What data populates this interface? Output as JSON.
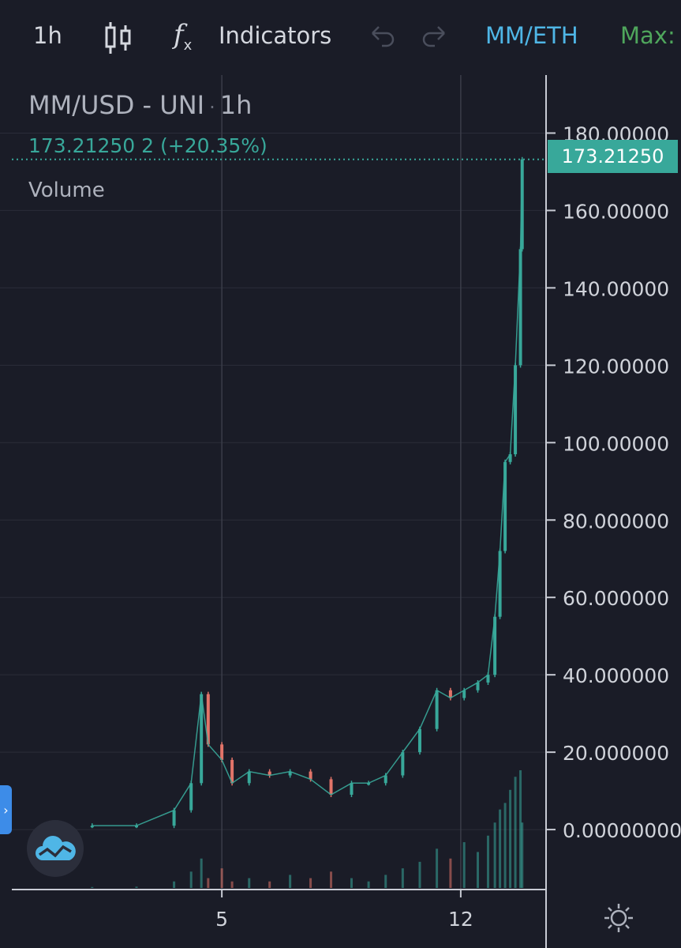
{
  "toolbar": {
    "interval": "1h",
    "indicators_label": "Indicators",
    "pair": "MM/ETH",
    "max_label": "Max:",
    "fx_label": "f",
    "fx_sub": "x",
    "icons": [
      "candlestick-icon",
      "function-icon",
      "undo-icon",
      "redo-icon"
    ]
  },
  "legend": {
    "title": "MM/USD - UNI",
    "separator": "·",
    "interval": "1h",
    "value_line": "173.21250  2 (+20.35%)",
    "volume_label": "Volume"
  },
  "price_badge": "173.21250",
  "side_tab": "›",
  "colors": {
    "background": "#1a1c27",
    "up": "#38a89a",
    "down": "#e27469",
    "axis_text": "#d0d3da",
    "grid": "#2a2d39",
    "accent_blue": "#4fb6e6",
    "accent_green": "#4fa65c"
  },
  "chart_data": {
    "type": "candlestick",
    "title": "MM/USD - UNI",
    "y_ticks": [
      "180.00000",
      "160.00000",
      "140.00000",
      "120.00000",
      "100.00000",
      "80.000000",
      "60.000000",
      "40.000000",
      "20.000000",
      "0.00000000"
    ],
    "y_tick_values": [
      180,
      160,
      140,
      120,
      100,
      80,
      60,
      40,
      20,
      0
    ],
    "ylim": [
      -15.5,
      195
    ],
    "x_ticks": [
      "5",
      "12"
    ],
    "x_tick_values": [
      5,
      12
    ],
    "xlim": [
      -1.5,
      14.5
    ],
    "last_price": 173.2125,
    "change_percent": 20.35,
    "series": [
      {
        "name": "price",
        "x": [
          1.2,
          2.5,
          3.6,
          4.1,
          4.4,
          4.6,
          5.0,
          5.3,
          5.8,
          6.4,
          7.0,
          7.6,
          8.2,
          8.8,
          9.3,
          9.8,
          10.3,
          10.8,
          11.3,
          11.7,
          12.1,
          12.5,
          12.8,
          13.0,
          13.15,
          13.3,
          13.45,
          13.6,
          13.75,
          13.8
        ],
        "values": [
          1,
          1,
          5,
          12,
          35,
          22,
          18,
          12,
          15,
          14,
          15,
          13,
          9,
          12,
          12,
          14,
          20,
          26,
          36,
          34,
          36,
          38,
          40,
          55,
          72,
          95,
          97,
          120,
          150,
          173.2
        ]
      }
    ],
    "volume_max": 36,
    "volume": [
      0.3,
      0.4,
      2,
      5,
      9,
      3,
      6,
      2,
      3,
      2,
      4,
      3,
      5,
      3,
      2,
      4,
      6,
      8,
      12,
      9,
      14,
      11,
      16,
      20,
      24,
      26,
      30,
      34,
      36,
      20
    ]
  }
}
